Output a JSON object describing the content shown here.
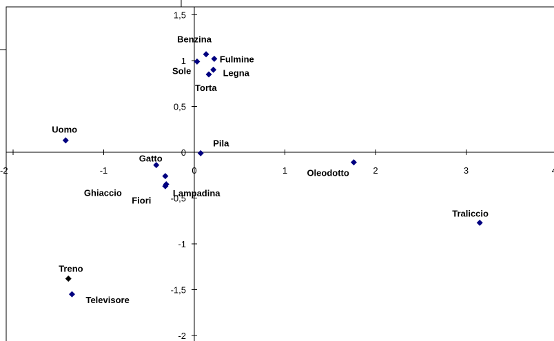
{
  "chart_data": {
    "type": "scatter",
    "title": "",
    "xlabel": "",
    "ylabel": "",
    "xlim": [
      -2,
      4
    ],
    "ylim": [
      -2,
      1.5
    ],
    "grid": false,
    "legend": "none",
    "marker_color": "#000080",
    "x_ticks": [
      {
        "value": -2,
        "label": "-2"
      },
      {
        "value": -1,
        "label": "-1"
      },
      {
        "value": 0,
        "label": "0"
      },
      {
        "value": 1,
        "label": "1"
      },
      {
        "value": 2,
        "label": "2"
      },
      {
        "value": 3,
        "label": "3"
      },
      {
        "value": 4,
        "label": "4"
      }
    ],
    "y_ticks": [
      {
        "value": 1.5,
        "label": "1,5"
      },
      {
        "value": 1,
        "label": "1"
      },
      {
        "value": 0.5,
        "label": "0,5"
      },
      {
        "value": 0,
        "label": "0"
      },
      {
        "value": -0.5,
        "label": "-0,5"
      },
      {
        "value": -1,
        "label": "-1"
      },
      {
        "value": -1.5,
        "label": "-1,5"
      },
      {
        "value": -2,
        "label": "-2"
      }
    ],
    "points": [
      {
        "label": "Benzina",
        "x": 0.13,
        "y": 1.07,
        "color": "#000080"
      },
      {
        "label": "Fulmine",
        "x": 0.22,
        "y": 1.02,
        "color": "#000080"
      },
      {
        "label": "Sole",
        "x": 0.03,
        "y": 0.99,
        "color": "#000080"
      },
      {
        "label": "Legna",
        "x": 0.21,
        "y": 0.9,
        "color": "#000080"
      },
      {
        "label": "Torta",
        "x": 0.16,
        "y": 0.85,
        "color": "#000080"
      },
      {
        "label": "Uomo",
        "x": -1.42,
        "y": 0.13,
        "color": "#000080"
      },
      {
        "label": "Pila",
        "x": 0.07,
        "y": -0.01,
        "color": "#000080"
      },
      {
        "label": "Gatto",
        "x": -0.42,
        "y": -0.14,
        "color": "#000080"
      },
      {
        "label": "Oleodotto",
        "x": 1.76,
        "y": -0.11,
        "color": "#000080"
      },
      {
        "label": "Ghiaccio",
        "x": -0.32,
        "y": -0.26,
        "color": "#000080"
      },
      {
        "label": "Lampadina",
        "x": -0.32,
        "y": -0.37,
        "color": "#000080"
      },
      {
        "label": "Fiori",
        "x": -0.31,
        "y": -0.35,
        "color": "#000080"
      },
      {
        "label": "Traliccio",
        "x": 3.15,
        "y": -0.77,
        "color": "#000080"
      },
      {
        "label": "Treno",
        "x": -1.39,
        "y": -1.38,
        "color": "#000000"
      },
      {
        "label": "Televisore",
        "x": -1.35,
        "y": -1.55,
        "color": "#000080"
      }
    ]
  }
}
